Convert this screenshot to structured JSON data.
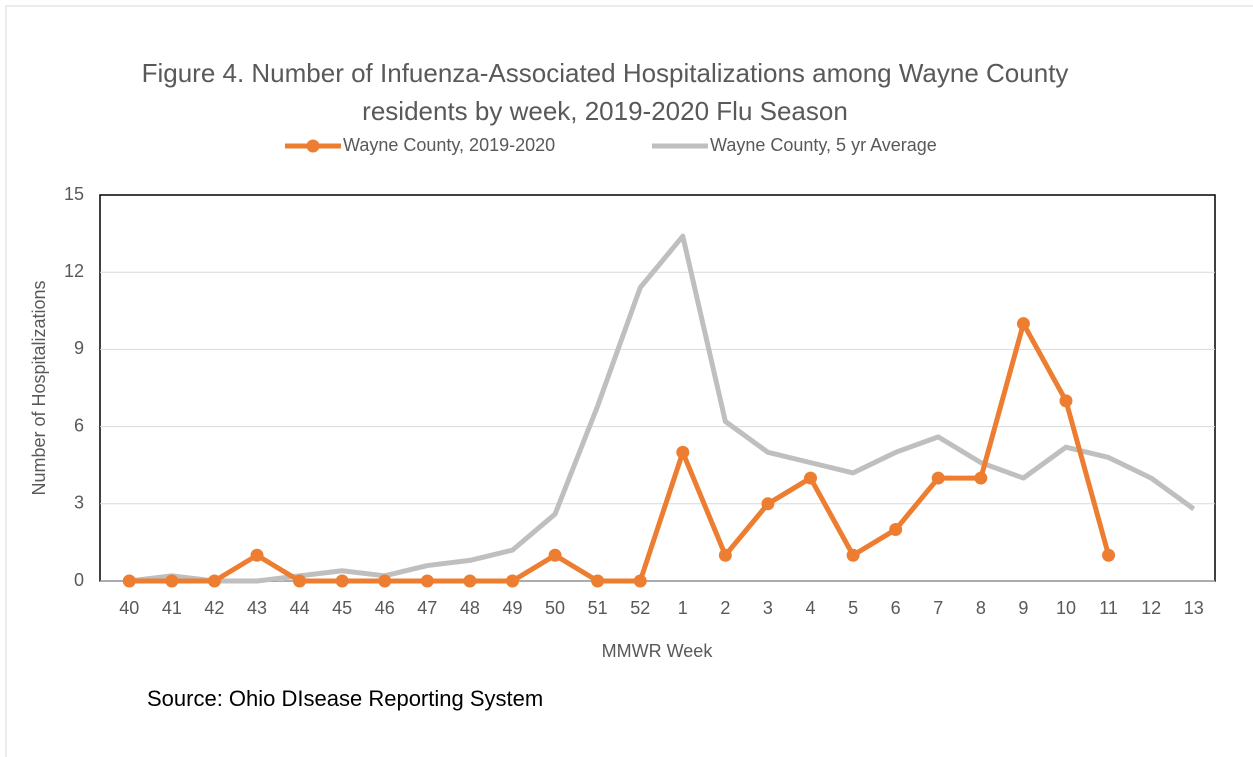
{
  "chart_data": {
    "type": "line",
    "title": "Figure 4. Number of Infuenza-Associated Hospitalizations among Wayne County residents by week, 2019-2020 Flu Season",
    "x_label": "MMWR Week",
    "y_label": "Number of Hospitalizations",
    "source": "Source: Ohio DIsease Reporting System",
    "categories": [
      "40",
      "41",
      "42",
      "43",
      "44",
      "45",
      "46",
      "47",
      "48",
      "49",
      "50",
      "51",
      "52",
      "1",
      "2",
      "3",
      "4",
      "5",
      "6",
      "7",
      "8",
      "9",
      "10",
      "11",
      "12",
      "13"
    ],
    "series": [
      {
        "name": "Wayne County, 2019-2020",
        "color": "#ed7d31",
        "markers": true,
        "values": [
          0,
          0,
          0,
          1,
          0,
          0,
          0,
          0,
          0,
          0,
          1,
          0,
          0,
          5,
          1,
          3,
          4,
          1,
          2,
          4,
          4,
          10,
          7,
          1,
          null,
          null
        ]
      },
      {
        "name": "Wayne County, 5 yr Average",
        "color": "#bfbfbf",
        "markers": false,
        "values": [
          0,
          0.2,
          0,
          0,
          0.2,
          0.4,
          0.2,
          0.6,
          0.8,
          1.2,
          2.6,
          6.8,
          11.4,
          13.4,
          6.2,
          5.0,
          4.6,
          4.2,
          5.0,
          5.6,
          4.6,
          4.0,
          5.2,
          4.8,
          4.0,
          2.8
        ]
      }
    ],
    "ylim": [
      0,
      15
    ],
    "yticks": [
      0,
      3,
      6,
      9,
      12,
      15
    ],
    "grid": true,
    "legend": "top"
  }
}
